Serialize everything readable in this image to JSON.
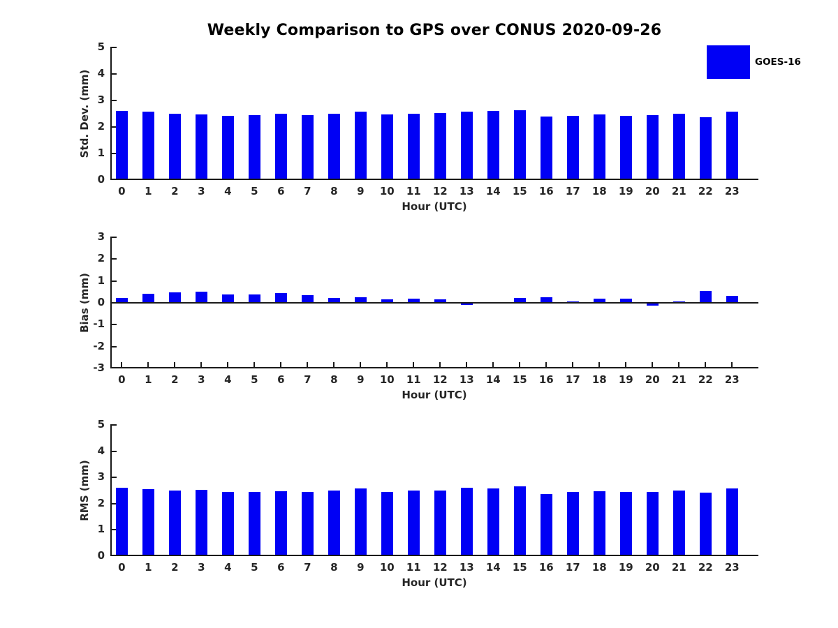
{
  "page": {
    "title": "Weekly Comparison to GPS over CONUS 2020-09-26"
  },
  "legend": {
    "series_label": "GOES-16",
    "swatch_color": "#0000f5",
    "position": "top-right"
  },
  "colors": {
    "bar": "#0000f5",
    "axis": "#1a1a1a",
    "tick_text": "#262626",
    "title_text": "#000000"
  },
  "chart_data": [
    {
      "type": "bar",
      "title": "Weekly Comparison to GPS over CONUS 2020-09-26",
      "series_name": "GOES-16",
      "xlabel": "Hour (UTC)",
      "ylabel": "Std. Dev. (mm)",
      "ylim": [
        0,
        5
      ],
      "yticks": [
        0,
        1,
        2,
        3,
        4,
        5
      ],
      "grid": false,
      "categories": [
        "0",
        "1",
        "2",
        "3",
        "4",
        "5",
        "6",
        "7",
        "8",
        "9",
        "10",
        "11",
        "12",
        "13",
        "14",
        "15",
        "16",
        "17",
        "18",
        "19",
        "20",
        "21",
        "22",
        "23"
      ],
      "values": [
        2.61,
        2.57,
        2.5,
        2.47,
        2.41,
        2.44,
        2.5,
        2.45,
        2.5,
        2.58,
        2.48,
        2.5,
        2.53,
        2.59,
        2.6,
        2.64,
        2.4,
        2.43,
        2.47,
        2.43,
        2.44,
        2.51,
        2.37,
        2.59
      ]
    },
    {
      "type": "bar",
      "title": "",
      "series_name": "GOES-16",
      "xlabel": "Hour (UTC)",
      "ylabel": "Bias (mm)",
      "ylim": [
        -3,
        3
      ],
      "yticks": [
        -3,
        -2,
        -1,
        0,
        1,
        2,
        3
      ],
      "grid": false,
      "categories": [
        "0",
        "1",
        "2",
        "3",
        "4",
        "5",
        "6",
        "7",
        "8",
        "9",
        "10",
        "11",
        "12",
        "13",
        "14",
        "15",
        "16",
        "17",
        "18",
        "19",
        "20",
        "21",
        "22",
        "23"
      ],
      "values": [
        0.22,
        0.42,
        0.48,
        0.52,
        0.4,
        0.4,
        0.45,
        0.36,
        0.23,
        0.27,
        0.17,
        0.2,
        0.15,
        -0.11,
        -0.02,
        0.21,
        0.25,
        0.06,
        0.18,
        0.2,
        -0.13,
        0.06,
        0.56,
        0.32
      ]
    },
    {
      "type": "bar",
      "title": "",
      "series_name": "GOES-16",
      "xlabel": "Hour (UTC)",
      "ylabel": "RMS (mm)",
      "ylim": [
        0,
        5
      ],
      "yticks": [
        0,
        1,
        2,
        3,
        4,
        5
      ],
      "grid": false,
      "categories": [
        "0",
        "1",
        "2",
        "3",
        "4",
        "5",
        "6",
        "7",
        "8",
        "9",
        "10",
        "11",
        "12",
        "13",
        "14",
        "15",
        "16",
        "17",
        "18",
        "19",
        "20",
        "21",
        "22",
        "23"
      ],
      "values": [
        2.6,
        2.56,
        2.51,
        2.52,
        2.44,
        2.44,
        2.48,
        2.44,
        2.49,
        2.57,
        2.45,
        2.5,
        2.51,
        2.6,
        2.57,
        2.65,
        2.38,
        2.45,
        2.48,
        2.44,
        2.44,
        2.49,
        2.41,
        2.59
      ]
    }
  ]
}
